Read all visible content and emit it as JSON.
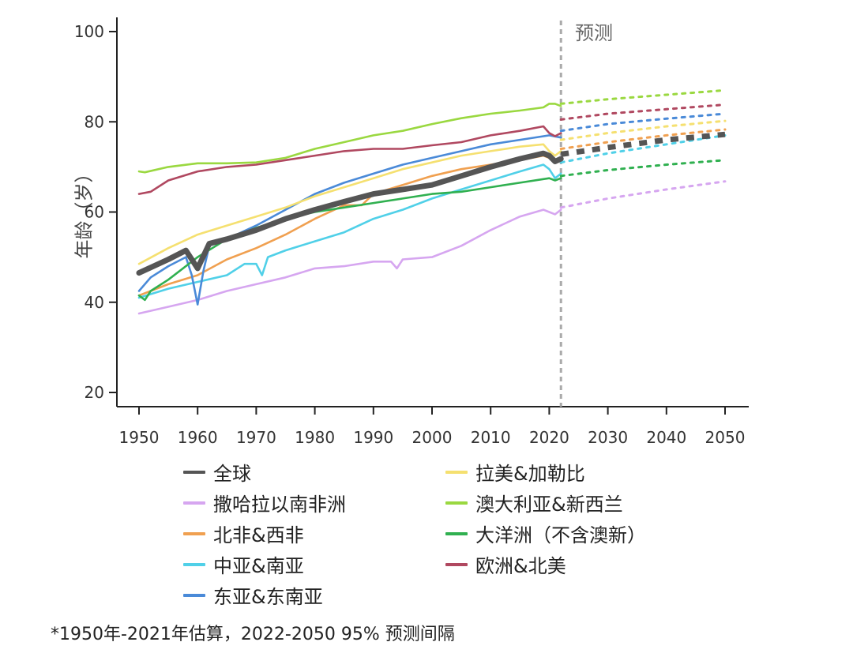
{
  "chart_data": {
    "type": "line",
    "title": "",
    "ylabel": "年龄（岁）",
    "xlabel": "",
    "forecast_label": "预测",
    "forecast_start": 2022,
    "xlim": [
      1950,
      2050
    ],
    "ylim": [
      20,
      100
    ],
    "x_ticks": [
      1950,
      1960,
      1970,
      1980,
      1990,
      2000,
      2010,
      2020,
      2030,
      2040,
      2050
    ],
    "y_ticks": [
      20,
      40,
      60,
      80,
      100
    ],
    "grid": false,
    "legend_position": "bottom",
    "series": [
      {
        "name": "全球",
        "color": "#555555",
        "points": [
          [
            1950,
            46.5
          ],
          [
            1955,
            49.5
          ],
          [
            1958,
            51.5
          ],
          [
            1960,
            47.5
          ],
          [
            1962,
            53
          ],
          [
            1965,
            54
          ],
          [
            1970,
            56
          ],
          [
            1975,
            58.5
          ],
          [
            1980,
            60.5
          ],
          [
            1985,
            62.3
          ],
          [
            1990,
            64
          ],
          [
            1995,
            65
          ],
          [
            2000,
            66
          ],
          [
            2005,
            68
          ],
          [
            2010,
            70
          ],
          [
            2015,
            71.8
          ],
          [
            2019,
            73
          ],
          [
            2020,
            72.5
          ],
          [
            2021,
            71.2
          ],
          [
            2022,
            71.8
          ]
        ],
        "forecast": [
          [
            2022,
            72.8
          ],
          [
            2030,
            74.3
          ],
          [
            2040,
            76
          ],
          [
            2050,
            77.2
          ]
        ]
      },
      {
        "name": "撒哈拉以南非洲",
        "color": "#d6a6f0",
        "points": [
          [
            1950,
            37.5
          ],
          [
            1955,
            39
          ],
          [
            1960,
            40.5
          ],
          [
            1965,
            42.5
          ],
          [
            1970,
            44
          ],
          [
            1975,
            45.5
          ],
          [
            1980,
            47.5
          ],
          [
            1985,
            48
          ],
          [
            1990,
            49
          ],
          [
            1993,
            49
          ],
          [
            1994,
            47.5
          ],
          [
            1995,
            49.5
          ],
          [
            2000,
            50
          ],
          [
            2005,
            52.5
          ],
          [
            2010,
            56
          ],
          [
            2015,
            59
          ],
          [
            2019,
            60.5
          ],
          [
            2020,
            60
          ],
          [
            2021,
            59.5
          ],
          [
            2022,
            60.5
          ]
        ],
        "forecast": [
          [
            2022,
            61
          ],
          [
            2030,
            63
          ],
          [
            2040,
            65
          ],
          [
            2050,
            66.8
          ]
        ]
      },
      {
        "name": "北非&西非",
        "color": "#f0a050",
        "points": [
          [
            1950,
            41.5
          ],
          [
            1955,
            44
          ],
          [
            1960,
            46
          ],
          [
            1965,
            49.5
          ],
          [
            1970,
            52
          ],
          [
            1975,
            55
          ],
          [
            1980,
            58.5
          ],
          [
            1985,
            61.5
          ],
          [
            1988,
            61.5
          ],
          [
            1990,
            64
          ],
          [
            1995,
            66
          ],
          [
            2000,
            68
          ],
          [
            2005,
            69.5
          ],
          [
            2010,
            70.5
          ],
          [
            2015,
            71.5
          ],
          [
            2019,
            72.5
          ],
          [
            2020,
            72
          ],
          [
            2021,
            71
          ],
          [
            2022,
            72
          ]
        ],
        "forecast": [
          [
            2022,
            74
          ],
          [
            2030,
            75.5
          ],
          [
            2040,
            77
          ],
          [
            2050,
            78.3
          ]
        ]
      },
      {
        "name": "中亚&南亚",
        "color": "#50d0e8",
        "points": [
          [
            1950,
            41
          ],
          [
            1955,
            43
          ],
          [
            1960,
            44.5
          ],
          [
            1965,
            46
          ],
          [
            1968,
            48.5
          ],
          [
            1970,
            48.5
          ],
          [
            1971,
            46
          ],
          [
            1972,
            50
          ],
          [
            1975,
            51.5
          ],
          [
            1980,
            53.5
          ],
          [
            1985,
            55.5
          ],
          [
            1990,
            58.5
          ],
          [
            1995,
            60.5
          ],
          [
            2000,
            63
          ],
          [
            2005,
            65
          ],
          [
            2010,
            67
          ],
          [
            2015,
            69
          ],
          [
            2019,
            70.5
          ],
          [
            2020,
            69.5
          ],
          [
            2021,
            67.5
          ],
          [
            2022,
            68.5
          ]
        ],
        "forecast": [
          [
            2022,
            71
          ],
          [
            2030,
            73
          ],
          [
            2040,
            75
          ],
          [
            2050,
            77
          ]
        ]
      },
      {
        "name": "东亚&东南亚",
        "color": "#4a8ad8",
        "points": [
          [
            1950,
            42.5
          ],
          [
            1952,
            45.5
          ],
          [
            1955,
            48
          ],
          [
            1958,
            50
          ],
          [
            1959,
            46
          ],
          [
            1960,
            39.5
          ],
          [
            1961,
            47
          ],
          [
            1962,
            52.5
          ],
          [
            1965,
            54
          ],
          [
            1970,
            57
          ],
          [
            1975,
            60.5
          ],
          [
            1980,
            64
          ],
          [
            1985,
            66.5
          ],
          [
            1990,
            68.5
          ],
          [
            1995,
            70.5
          ],
          [
            2000,
            72
          ],
          [
            2005,
            73.5
          ],
          [
            2010,
            75
          ],
          [
            2015,
            76
          ],
          [
            2020,
            77
          ],
          [
            2022,
            76.5
          ]
        ],
        "forecast": [
          [
            2022,
            78
          ],
          [
            2030,
            79.5
          ],
          [
            2040,
            80.7
          ],
          [
            2050,
            81.8
          ]
        ]
      },
      {
        "name": "拉美&加勒比",
        "color": "#f5e070",
        "points": [
          [
            1950,
            48.5
          ],
          [
            1955,
            52
          ],
          [
            1960,
            55
          ],
          [
            1965,
            57
          ],
          [
            1970,
            59
          ],
          [
            1975,
            61
          ],
          [
            1980,
            63.5
          ],
          [
            1985,
            65.5
          ],
          [
            1990,
            67.5
          ],
          [
            1995,
            69.5
          ],
          [
            2000,
            71
          ],
          [
            2005,
            72.5
          ],
          [
            2010,
            73.5
          ],
          [
            2015,
            74.5
          ],
          [
            2019,
            75
          ],
          [
            2020,
            73.5
          ],
          [
            2021,
            72.5
          ],
          [
            2022,
            73.5
          ]
        ],
        "forecast": [
          [
            2022,
            76
          ],
          [
            2030,
            77.5
          ],
          [
            2040,
            79
          ],
          [
            2050,
            80.2
          ]
        ]
      },
      {
        "name": "澳大利亚&新西兰",
        "color": "#9ad840",
        "points": [
          [
            1950,
            69
          ],
          [
            1951,
            68.8
          ],
          [
            1955,
            70
          ],
          [
            1960,
            70.8
          ],
          [
            1965,
            70.8
          ],
          [
            1970,
            71
          ],
          [
            1975,
            72
          ],
          [
            1980,
            74
          ],
          [
            1985,
            75.5
          ],
          [
            1990,
            77
          ],
          [
            1995,
            78
          ],
          [
            2000,
            79.5
          ],
          [
            2005,
            80.8
          ],
          [
            2010,
            81.8
          ],
          [
            2015,
            82.5
          ],
          [
            2019,
            83.2
          ],
          [
            2020,
            84
          ],
          [
            2021,
            84
          ],
          [
            2022,
            83.5
          ]
        ],
        "forecast": [
          [
            2022,
            84
          ],
          [
            2030,
            85
          ],
          [
            2040,
            86
          ],
          [
            2050,
            87
          ]
        ]
      },
      {
        "name": "大洋洲（不含澳新）",
        "color": "#30b050",
        "points": [
          [
            1950,
            41.5
          ],
          [
            1951,
            40.5
          ],
          [
            1952,
            42.5
          ],
          [
            1955,
            45
          ],
          [
            1960,
            50
          ],
          [
            1965,
            54
          ],
          [
            1970,
            56.5
          ],
          [
            1975,
            58.5
          ],
          [
            1980,
            60
          ],
          [
            1985,
            61
          ],
          [
            1990,
            62
          ],
          [
            1995,
            63
          ],
          [
            2000,
            64
          ],
          [
            2005,
            64.5
          ],
          [
            2010,
            65.5
          ],
          [
            2015,
            66.5
          ],
          [
            2020,
            67.5
          ],
          [
            2021,
            67
          ],
          [
            2022,
            67.5
          ]
        ],
        "forecast": [
          [
            2022,
            68
          ],
          [
            2030,
            69.3
          ],
          [
            2040,
            70.5
          ],
          [
            2050,
            71.5
          ]
        ]
      },
      {
        "name": "欧洲&北美",
        "color": "#b04860",
        "points": [
          [
            1950,
            64
          ],
          [
            1952,
            64.5
          ],
          [
            1955,
            67
          ],
          [
            1960,
            69
          ],
          [
            1965,
            70
          ],
          [
            1970,
            70.5
          ],
          [
            1975,
            71.5
          ],
          [
            1980,
            72.5
          ],
          [
            1985,
            73.5
          ],
          [
            1990,
            74
          ],
          [
            1995,
            74
          ],
          [
            2000,
            74.8
          ],
          [
            2005,
            75.5
          ],
          [
            2010,
            77
          ],
          [
            2015,
            78
          ],
          [
            2019,
            79
          ],
          [
            2020,
            77.5
          ],
          [
            2021,
            76.8
          ],
          [
            2022,
            77.5
          ]
        ],
        "forecast": [
          [
            2022,
            80.5
          ],
          [
            2030,
            81.8
          ],
          [
            2040,
            82.8
          ],
          [
            2050,
            83.8
          ]
        ]
      }
    ]
  },
  "footnote": "*1950年-2021年估算，2022-2050 95% 预测间隔"
}
